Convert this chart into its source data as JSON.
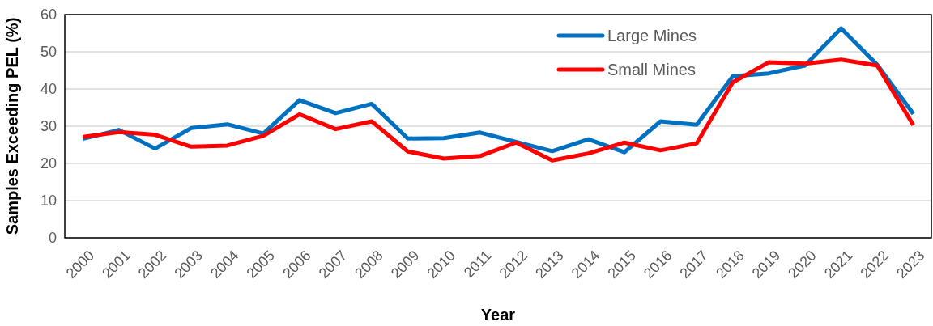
{
  "chart_data": {
    "type": "line",
    "xlabel": "Year",
    "ylabel": "Samples Exceeding PEL (%)",
    "categories": [
      "2000",
      "2001",
      "2002",
      "2003",
      "2004",
      "2005",
      "2006",
      "2007",
      "2008",
      "2009",
      "2010",
      "2011",
      "2012",
      "2013",
      "2014",
      "2015",
      "2016",
      "2017",
      "2018",
      "2019",
      "2020",
      "2021",
      "2022",
      "2023"
    ],
    "series": [
      {
        "name": "Large Mines",
        "color": "#0070c0",
        "values": [
          26.6,
          29,
          24,
          29.5,
          30.5,
          28,
          37,
          33.5,
          36,
          26.7,
          26.8,
          28.3,
          25.8,
          23.3,
          26.5,
          23,
          31.3,
          30.4,
          43.4,
          44.2,
          46.3,
          56.3,
          46.5,
          33.3
        ]
      },
      {
        "name": "Small Mines",
        "color": "#ff0000",
        "values": [
          27.1,
          28.4,
          27.7,
          24.5,
          24.8,
          27.4,
          33.2,
          29.2,
          31.3,
          23.2,
          21.3,
          22,
          25.6,
          20.8,
          22.7,
          25.6,
          23.5,
          25.4,
          41.8,
          47.2,
          46.8,
          47.9,
          46.3,
          30.3
        ]
      }
    ],
    "ylim": [
      0,
      60
    ],
    "yticks": [
      0,
      10,
      20,
      30,
      40,
      50,
      60
    ],
    "grid": "y",
    "legend": "top right",
    "marker": "none",
    "line_style": "solid"
  }
}
